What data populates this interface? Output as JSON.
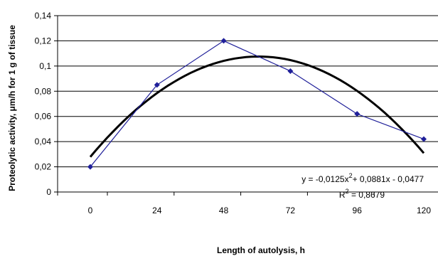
{
  "chart_data": {
    "type": "line",
    "x": [
      0,
      24,
      48,
      72,
      96,
      120
    ],
    "series": [
      {
        "values": [
          0.02,
          0.085,
          0.12,
          0.096,
          0.062,
          0.042
        ],
        "color": "#1f1f99",
        "marker": "diamond"
      }
    ],
    "trendline": {
      "type": "polynomial-2",
      "color": "#000000",
      "equation_parts": {
        "pre": "y = -0,0125x",
        "sup": "2",
        "post": "+ 0,0881x - 0,0477"
      },
      "r2_parts": {
        "pre": "R",
        "sup": "2",
        "post": " = 0,8679"
      }
    },
    "xlabel": "Length of autolysis, h",
    "ylabel": "Proteolytic activity, μm/h for 1 g of tissue",
    "xlim": [
      -12,
      120
    ],
    "ylim": [
      0,
      0.14
    ],
    "x_ticks": [
      "0",
      "24",
      "48",
      "72",
      "96",
      "120"
    ],
    "y_ticks": [
      "0",
      "0,02",
      "0,04",
      "0,06",
      "0,08",
      "0,1",
      "0,12",
      "0,14"
    ],
    "grid": "horizontal",
    "legend": "none"
  }
}
